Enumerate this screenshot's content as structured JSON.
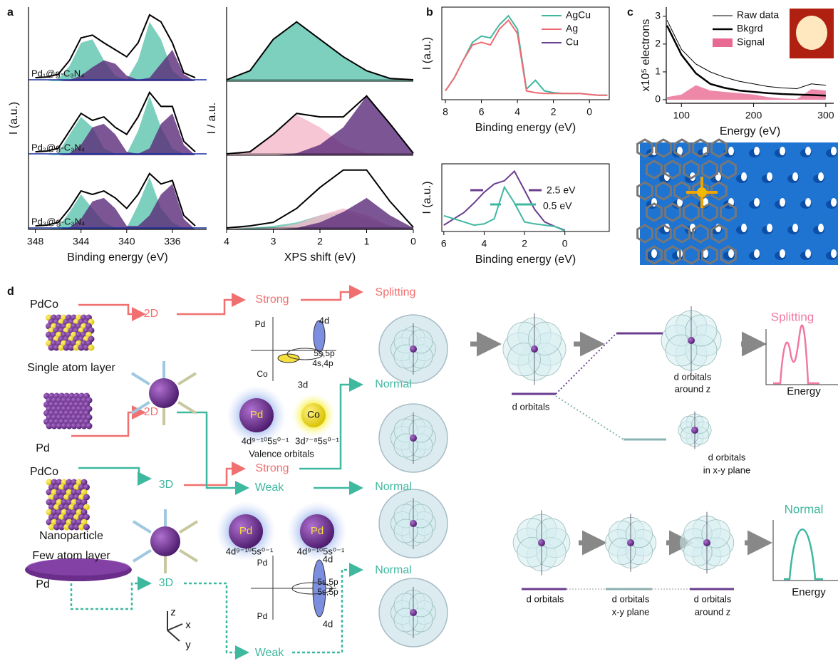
{
  "panel_labels": [
    "a",
    "b",
    "c"
  ],
  "chart_data": [
    {
      "type": "area",
      "xlabel": "Binding energy (eV)",
      "ylabel": "I (a.u.)",
      "xlim": [
        348.6,
        333
      ],
      "xticks": [
        348,
        344,
        340,
        336
      ],
      "ylim": [
        0,
        1
      ],
      "x": [
        348,
        347,
        346,
        345,
        344,
        343,
        342,
        341,
        340,
        339,
        338,
        337,
        336,
        335,
        334
      ],
      "panels": [
        {
          "label": "Pd₁@g-C₃N₄",
          "series": [
            {
              "color": "#5cc3ae",
              "fill": true,
              "values": [
                0,
                0,
                0.03,
                0.22,
                0.55,
                0.6,
                0.3,
                0.08,
                0.02,
                0.3,
                0.85,
                0.6,
                0.15,
                0.02,
                0
              ]
            },
            {
              "color": "#5b2a7a",
              "fill": true,
              "values": [
                0,
                0,
                0,
                0.02,
                0.08,
                0.2,
                0.3,
                0.25,
                0.08,
                0.02,
                0.05,
                0.25,
                0.45,
                0.1,
                0
              ]
            },
            {
              "color": "#000000",
              "fill": false,
              "values": [
                0.05,
                0.06,
                0.1,
                0.3,
                0.62,
                0.66,
                0.55,
                0.45,
                0.35,
                0.55,
                0.95,
                0.85,
                0.55,
                0.12,
                0.05
              ]
            }
          ]
        },
        {
          "label": "Pd₂@g-C₃N₄",
          "series": [
            {
              "color": "#5cc3ae",
              "fill": true,
              "values": [
                0,
                0,
                0.03,
                0.3,
                0.55,
                0.4,
                0.1,
                0.02,
                0.02,
                0.35,
                0.85,
                0.4,
                0.1,
                0.02,
                0
              ]
            },
            {
              "color": "#5b2a7a",
              "fill": true,
              "values": [
                0,
                0,
                0,
                0.03,
                0.15,
                0.4,
                0.45,
                0.3,
                0.05,
                0.02,
                0.1,
                0.45,
                0.6,
                0.15,
                0
              ]
            },
            {
              "color": "#000000",
              "fill": false,
              "values": [
                0.05,
                0.06,
                0.1,
                0.35,
                0.6,
                0.5,
                0.55,
                0.4,
                0.3,
                0.55,
                0.9,
                0.7,
                0.7,
                0.2,
                0.05
              ]
            }
          ]
        },
        {
          "label": "Pd₃@g-C₃N₄",
          "series": [
            {
              "color": "#5cc3ae",
              "fill": true,
              "values": [
                0,
                0,
                0.03,
                0.25,
                0.5,
                0.3,
                0.1,
                0.02,
                0.02,
                0.35,
                0.75,
                0.3,
                0.1,
                0.02,
                0
              ]
            },
            {
              "color": "#5b2a7a",
              "fill": true,
              "values": [
                0,
                0,
                0,
                0.03,
                0.15,
                0.4,
                0.45,
                0.3,
                0.05,
                0.05,
                0.2,
                0.5,
                0.65,
                0.15,
                0
              ]
            },
            {
              "color": "#000000",
              "fill": false,
              "values": [
                0.05,
                0.06,
                0.1,
                0.3,
                0.55,
                0.5,
                0.55,
                0.45,
                0.3,
                0.5,
                0.8,
                0.65,
                0.7,
                0.2,
                0.05
              ]
            }
          ]
        }
      ]
    },
    {
      "type": "area",
      "xlabel": "XPS shift (eV)",
      "ylabel": "I / a.u.",
      "xlim": [
        4,
        0
      ],
      "xticks": [
        4,
        3,
        2,
        1,
        0
      ],
      "ylim": [
        0,
        1
      ],
      "x": [
        4,
        3.5,
        3,
        2.5,
        2,
        1.5,
        1,
        0.5,
        0
      ],
      "panels": [
        {
          "series": [
            {
              "color": "#5cc3ae",
              "fill": true,
              "values": [
                0.02,
                0.15,
                0.6,
                0.85,
                0.6,
                0.35,
                0.15,
                0.04,
                0.02
              ]
            },
            {
              "color": "#000000",
              "fill": false,
              "values": [
                0.02,
                0.15,
                0.6,
                0.85,
                0.6,
                0.35,
                0.15,
                0.04,
                0.02
              ]
            }
          ]
        },
        {
          "series": [
            {
              "color": "#f5b8c9",
              "fill": true,
              "values": [
                0.02,
                0.05,
                0.3,
                0.58,
                0.4,
                0.15,
                0.03,
                0,
                0
              ]
            },
            {
              "color": "#5b2a7a",
              "fill": true,
              "values": [
                0,
                0,
                0,
                0.03,
                0.15,
                0.4,
                0.85,
                0.45,
                0.03
              ]
            },
            {
              "color": "#000000",
              "fill": false,
              "values": [
                0.02,
                0.05,
                0.3,
                0.6,
                0.55,
                0.55,
                0.85,
                0.45,
                0.03
              ]
            }
          ]
        },
        {
          "series": [
            {
              "color": "#5cc3ae",
              "fill": true,
              "values": [
                0,
                0.02,
                0.05,
                0.1,
                0.2,
                0.25,
                0.15,
                0.05,
                0
              ]
            },
            {
              "color": "#f5b8c9",
              "fill": true,
              "values": [
                0,
                0,
                0.02,
                0.08,
                0.2,
                0.3,
                0.2,
                0.05,
                0
              ]
            },
            {
              "color": "#5b2a7a",
              "fill": true,
              "values": [
                0,
                0,
                0,
                0.02,
                0.1,
                0.25,
                0.45,
                0.2,
                0.02
              ]
            },
            {
              "color": "#000000",
              "fill": false,
              "values": [
                0.02,
                0.05,
                0.1,
                0.3,
                0.6,
                0.85,
                0.85,
                0.4,
                0.03
              ]
            }
          ]
        }
      ]
    },
    {
      "type": "line",
      "xlabel": "Binding energy (eV)",
      "ylabel": "I (a.u.)",
      "xlim": [
        8.2,
        -1.1
      ],
      "xticks": [
        8,
        6,
        4,
        2,
        0
      ],
      "ylim": [
        0,
        1
      ],
      "x": [
        8,
        7.5,
        7,
        6.5,
        6,
        5.5,
        5,
        4.5,
        4,
        3.5,
        3,
        2.5,
        2,
        1.5,
        1,
        0.5,
        0,
        -0.5,
        -1
      ],
      "series": [
        {
          "name": "AgCu",
          "color": "#3fb8a0",
          "values": [
            0.1,
            0.25,
            0.45,
            0.65,
            0.72,
            0.7,
            0.85,
            0.95,
            0.8,
            0.12,
            0.22,
            0.1,
            0.08,
            0.07,
            0.07,
            0.07,
            0.06,
            0.05,
            0.05
          ]
        },
        {
          "name": "Ag",
          "color": "#ef6b73",
          "values": [
            0.1,
            0.25,
            0.45,
            0.62,
            0.65,
            0.62,
            0.8,
            0.9,
            0.75,
            0.1,
            0.08,
            0.07,
            0.07,
            0.07,
            0.07,
            0.07,
            0.06,
            0.05,
            0.05
          ]
        },
        {
          "name": "Cu",
          "color": "#6a3d8f",
          "values": [
            null,
            null,
            null,
            null,
            null,
            null,
            null,
            null,
            null,
            null,
            null,
            null,
            null,
            null,
            null,
            null,
            null,
            null,
            null
          ]
        }
      ]
    },
    {
      "type": "line",
      "xlabel": "Binding energy (eV)",
      "ylabel": "I (a.u.)",
      "xlim": [
        6.1,
        -2.2
      ],
      "xticks": [
        6,
        4,
        2,
        0
      ],
      "ylim": [
        0,
        1
      ],
      "x": [
        6,
        5.5,
        5,
        4.5,
        4,
        3.5,
        3,
        2.5,
        2,
        1.5,
        1,
        0.5,
        0
      ],
      "annotations": [
        "2.5 eV",
        "0.5 eV"
      ],
      "series": [
        {
          "color": "#6a3d8f",
          "values": [
            0.1,
            0.2,
            0.3,
            0.45,
            0.62,
            0.75,
            0.8,
            0.95,
            0.65,
            0.35,
            0.15,
            0.08,
            0.02
          ]
        },
        {
          "color": "#3fb8a0",
          "values": [
            0.25,
            0.2,
            0.15,
            0.1,
            0.12,
            0.2,
            0.7,
            0.45,
            0.15,
            0.12,
            0.1,
            0.08,
            0.01
          ]
        }
      ]
    },
    {
      "type": "line",
      "xlabel": "Energy (eV)",
      "ylabel": "x10⁵ electrons",
      "xlim": [
        79,
        311
      ],
      "xticks": [
        100,
        200,
        300
      ],
      "ylim": [
        -0.13,
        3.33
      ],
      "yticks": [
        0,
        1,
        2,
        3
      ],
      "x": [
        80,
        100,
        120,
        140,
        160,
        180,
        200,
        220,
        240,
        260,
        280,
        300
      ],
      "series": [
        {
          "name": "Signal",
          "color": "#e86a93",
          "fill": true,
          "values": [
            0.1,
            0.2,
            0.55,
            0.35,
            0.3,
            0.25,
            0.2,
            0.1,
            0.05,
            0.03,
            0.4,
            0.35
          ]
        },
        {
          "name": "Raw data",
          "color": "#000000",
          "linewidth": 1,
          "values": [
            3.0,
            1.9,
            1.35,
            1.05,
            0.85,
            0.7,
            0.6,
            0.5,
            0.45,
            0.42,
            0.6,
            0.55
          ]
        },
        {
          "name": "Bkgrd",
          "color": "#000000",
          "linewidth": 2.5,
          "values": [
            2.8,
            1.7,
            1.0,
            0.6,
            0.45,
            0.35,
            0.3,
            0.25,
            0.22,
            0.2,
            0.18,
            0.16
          ]
        }
      ]
    }
  ],
  "panel_d": {
    "labels": [
      "d",
      "PdCo",
      "2D",
      "Strong",
      "Splitting",
      "Single atom layer",
      "Pd",
      "2D",
      "Normal",
      "Pd",
      "4d",
      "5s,5p",
      "4s,4p",
      "Co",
      "3d",
      "Pd",
      "Co",
      "4d⁹⁻¹⁰5s⁰⁻¹",
      "3d⁷⁻⁸5s⁰⁻¹",
      "Valence orbitals",
      "d orbitals",
      "d orbitals",
      "around z",
      "Splitting",
      "Energy",
      "d orbitals",
      "in x-y plane",
      "PdCo",
      "3D",
      "Strong",
      "Weak",
      "Normal",
      "Nanoparticle",
      "Few atom layer",
      "Pd",
      "3D",
      "Weak",
      "Normal",
      "Pd",
      "Pd",
      "4d⁹⁻¹⁰5s⁰⁻¹",
      "4d⁹⁻¹⁰5s⁰⁻¹",
      "Pd",
      "4d",
      "5s,5p",
      "5s,5p",
      "Pd",
      "4d",
      "z",
      "x",
      "y",
      "d orbitals",
      "d orbitals",
      "x-y plane",
      "d orbitals",
      "around z",
      "Normal",
      "Energy"
    ]
  }
}
